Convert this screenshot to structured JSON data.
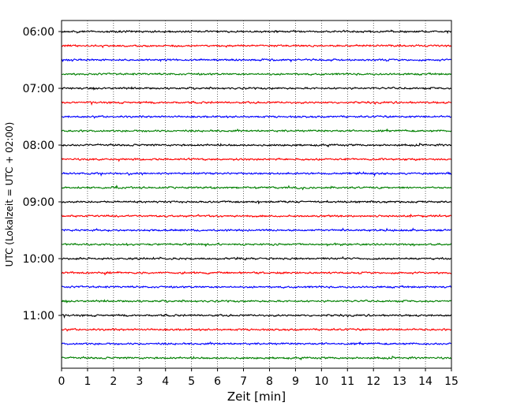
{
  "chart_data": {
    "type": "line",
    "title": "",
    "xlabel": "Zeit  [min]",
    "ylabel": "UTC (Lokalzeit = UTC + 02:00)",
    "xlim": [
      0,
      15
    ],
    "x_ticks": [
      0,
      1,
      2,
      3,
      4,
      5,
      6,
      7,
      8,
      9,
      10,
      11,
      12,
      13,
      14,
      15
    ],
    "x_tick_labels": [
      "0",
      "1",
      "2",
      "3",
      "4",
      "5",
      "6",
      "7",
      "8",
      "9",
      "10",
      "11",
      "12",
      "13",
      "14",
      "15"
    ],
    "y_tick_labels": [
      "06:00",
      "07:00",
      "08:00",
      "09:00",
      "10:00",
      "11:00"
    ],
    "y_tick_traces": [
      0,
      4,
      8,
      12,
      16,
      20
    ],
    "vertical_grid": true,
    "grid_style": "dotted",
    "trace_minutes": 15,
    "trace_colors": [
      "#000000",
      "#ff0000",
      "#0000ff",
      "#008000"
    ],
    "traces_start": "06:00",
    "trace_count": 24
  }
}
